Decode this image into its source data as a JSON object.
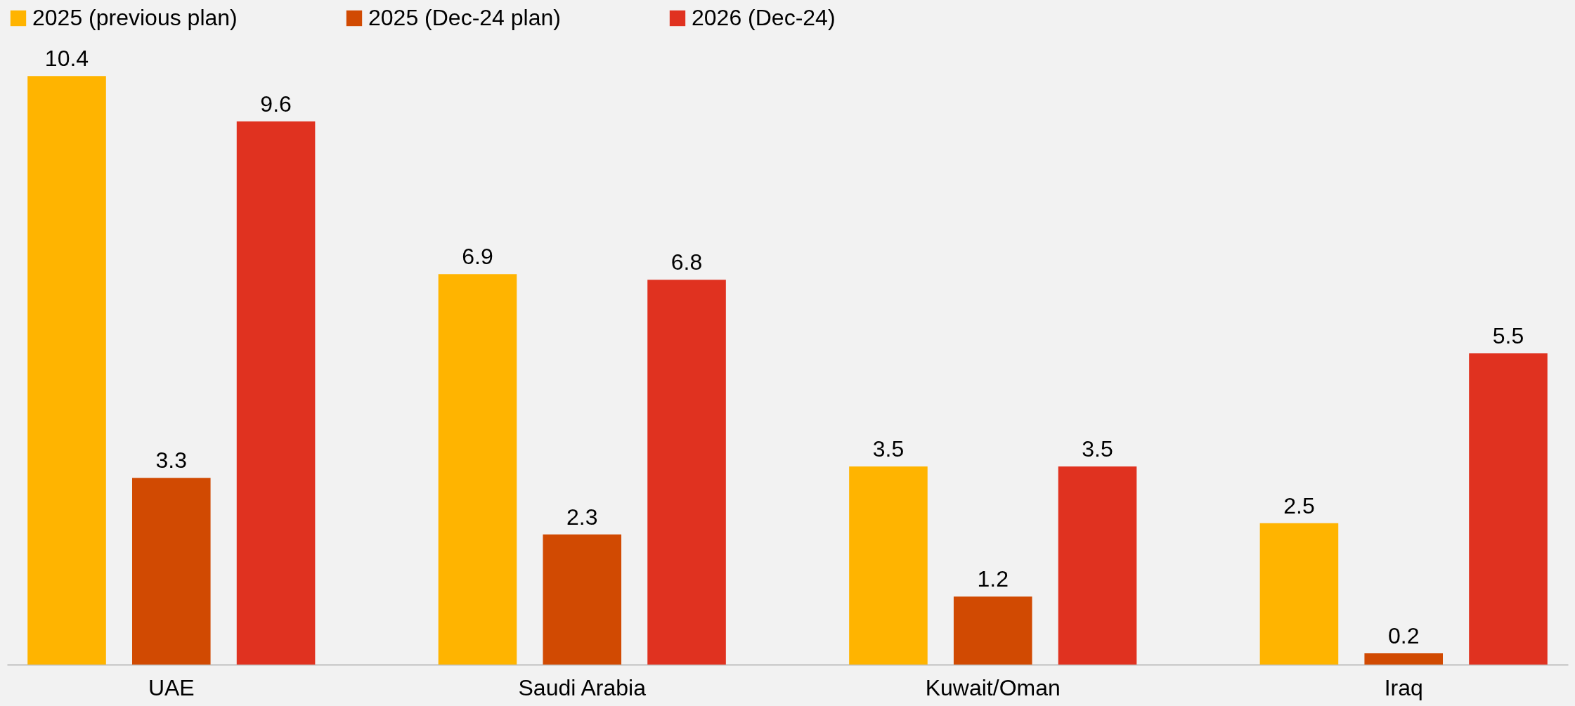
{
  "chart_data": {
    "type": "bar",
    "categories": [
      "UAE",
      "Saudi Arabia",
      "Kuwait/Oman",
      "Iraq"
    ],
    "series": [
      {
        "name": "2025 (previous plan)",
        "color": "#ffb400",
        "values": [
          10.4,
          6.9,
          3.5,
          2.5
        ]
      },
      {
        "name": "2025 (Dec-24 plan)",
        "color": "#d14a02",
        "values": [
          3.3,
          2.3,
          1.2,
          0.2
        ]
      },
      {
        "name": "2026 (Dec-24)",
        "color": "#e03220",
        "values": [
          9.6,
          6.8,
          3.5,
          5.5
        ]
      }
    ],
    "data_labels": true,
    "legend": "top",
    "grid": false
  }
}
